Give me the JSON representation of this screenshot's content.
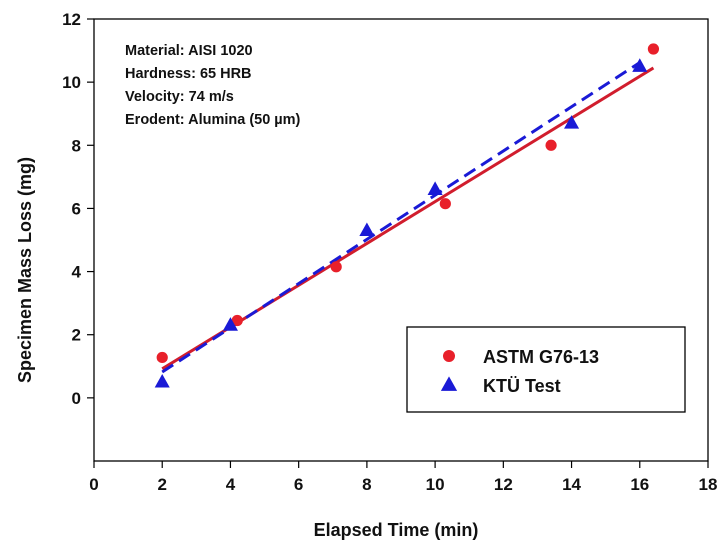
{
  "chart_data": {
    "type": "scatter",
    "xlabel": "Elapsed Time (min)",
    "ylabel": "Specimen Mass Loss (mg)",
    "xlim": [
      0,
      18
    ],
    "ylim": [
      -2,
      12
    ],
    "x_ticks": [
      0,
      2,
      4,
      6,
      8,
      10,
      12,
      14,
      16,
      18
    ],
    "y_ticks": [
      0,
      2,
      4,
      6,
      8,
      10,
      12
    ],
    "grid": false,
    "legend_position": "bottom-right",
    "annotations": [
      "Material: AISI 1020",
      "Hardness: 65 HRB",
      "Velocity: 74 m/s",
      "Erodent: Alumina (50 µm)"
    ],
    "series": [
      {
        "name": "ASTM G76-13",
        "marker": "circle",
        "color": "#e8202a",
        "x": [
          2.0,
          4.2,
          7.1,
          10.3,
          13.4,
          16.4
        ],
        "y": [
          1.28,
          2.45,
          4.15,
          6.15,
          8.0,
          11.05
        ],
        "fit": {
          "style": "solid",
          "color": "#d11d2d",
          "x": [
            2.0,
            16.4
          ],
          "y": [
            0.92,
            10.45
          ]
        }
      },
      {
        "name": "KTÜ Test",
        "marker": "triangle",
        "color": "#1a1ad6",
        "x": [
          2.0,
          4.0,
          8.0,
          10.0,
          14.0,
          16.0
        ],
        "y": [
          0.5,
          2.3,
          5.3,
          6.6,
          8.7,
          10.5
        ],
        "fit": {
          "style": "dashed",
          "color": "#1a1ad6",
          "x": [
            2.0,
            16.0
          ],
          "y": [
            0.82,
            10.62
          ]
        }
      }
    ]
  }
}
